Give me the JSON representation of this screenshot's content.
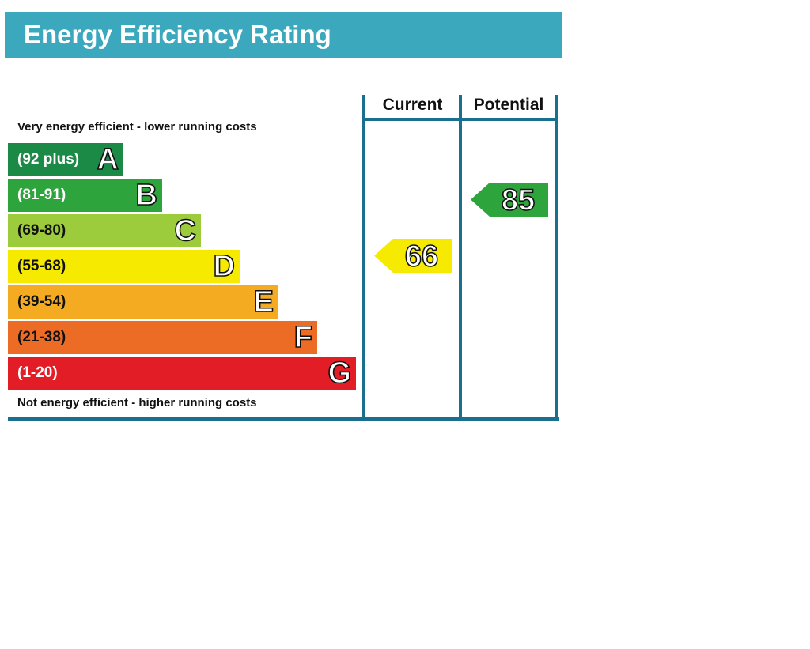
{
  "chart_data": {
    "type": "bar",
    "title": "Energy Efficiency Rating",
    "top_note": "Very energy efficient - lower running costs",
    "bottom_note": "Not energy efficient - higher running costs",
    "columns": [
      "Current",
      "Potential"
    ],
    "bands": [
      {
        "letter": "A",
        "range": "(92 plus)",
        "color": "#1a8a46",
        "text_color": "#ffffff"
      },
      {
        "letter": "B",
        "range": "(81-91)",
        "color": "#2da43c",
        "text_color": "#ffffff"
      },
      {
        "letter": "C",
        "range": "(69-80)",
        "color": "#9ccb3b",
        "text_color": "#111111"
      },
      {
        "letter": "D",
        "range": "(55-68)",
        "color": "#f5ea00",
        "text_color": "#111111"
      },
      {
        "letter": "E",
        "range": "(39-54)",
        "color": "#f4ab22",
        "text_color": "#111111"
      },
      {
        "letter": "F",
        "range": "(21-38)",
        "color": "#ec6b25",
        "text_color": "#111111"
      },
      {
        "letter": "G",
        "range": "(1-20)",
        "color": "#e31d25",
        "text_color": "#ffffff"
      }
    ],
    "ratings": [
      {
        "column": "Current",
        "value": 66,
        "band": "D",
        "color": "#f5ea00"
      },
      {
        "column": "Potential",
        "value": 85,
        "band": "B",
        "color": "#2da43c"
      }
    ],
    "colors": {
      "title_bar": "#3ba8bd",
      "frame": "#1a6f8e"
    }
  }
}
